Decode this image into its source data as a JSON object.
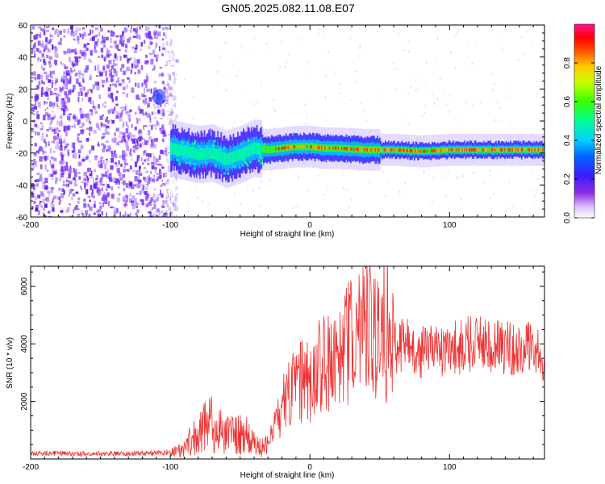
{
  "title": "GN05.2025.082.11.08.E07",
  "colors": {
    "spectrum_low": "#7b2ff7",
    "spectrum_high": "#ff0000",
    "snr_line": "#ee3333",
    "frame": "#000000"
  },
  "chart_data": [
    {
      "type": "heatmap",
      "xlabel": "Height of straight line (km)",
      "ylabel": "Frequency (Hz)",
      "xlim": [
        -200,
        168
      ],
      "ylim": [
        -60,
        60
      ],
      "xticks": [
        -200,
        -100,
        0,
        100
      ],
      "yticks": [
        -60,
        -40,
        -20,
        0,
        20,
        40,
        60
      ],
      "grid": false,
      "noise_region": {
        "x": [
          -200,
          -100
        ],
        "y": [
          -60,
          60
        ]
      },
      "band_center": [
        {
          "x": -100,
          "y": -17
        },
        {
          "x": -90,
          "y": -19
        },
        {
          "x": -80,
          "y": -21
        },
        {
          "x": -70,
          "y": -20
        },
        {
          "x": -60,
          "y": -24
        },
        {
          "x": -50,
          "y": -21
        },
        {
          "x": -40,
          "y": -17
        },
        {
          "x": -30,
          "y": -18
        },
        {
          "x": -20,
          "y": -17
        },
        {
          "x": -10,
          "y": -16
        },
        {
          "x": 0,
          "y": -16
        },
        {
          "x": 10,
          "y": -17
        },
        {
          "x": 20,
          "y": -17
        },
        {
          "x": 40,
          "y": -18
        },
        {
          "x": 60,
          "y": -18
        },
        {
          "x": 80,
          "y": -19
        },
        {
          "x": 100,
          "y": -18
        },
        {
          "x": 130,
          "y": -18
        },
        {
          "x": 168,
          "y": -18
        }
      ],
      "colorbar": {
        "label": "Normalized spectral amplitude",
        "range": [
          0,
          1
        ],
        "ticks": [
          "0.0",
          "0.2",
          "0.4",
          "0.6",
          "0.8"
        ]
      }
    },
    {
      "type": "line",
      "xlabel": "Height of straight line (km)",
      "ylabel": "SNR (10 * v/v)",
      "xlim": [
        -200,
        168
      ],
      "ylim": [
        0,
        6700
      ],
      "xticks": [
        -200,
        -100,
        0,
        100
      ],
      "yticks": [
        2000,
        4000,
        6000
      ],
      "grid": false,
      "series": [
        {
          "x": [
            -200,
            -180,
            -160,
            -140,
            -120,
            -100,
            -90,
            -85,
            -80,
            -75,
            -70,
            -60,
            -50,
            -45,
            -40,
            -35,
            -30,
            -25,
            -20,
            -15,
            -10,
            -5,
            0,
            5,
            10,
            20,
            30,
            40,
            50,
            60,
            70,
            80,
            100,
            120,
            140,
            160,
            168
          ],
          "values": [
            200,
            200,
            180,
            190,
            200,
            230,
            350,
            700,
            900,
            1100,
            1200,
            800,
            900,
            800,
            500,
            400,
            500,
            1100,
            1800,
            2300,
            2500,
            2700,
            2700,
            3100,
            3300,
            3400,
            4200,
            4400,
            4100,
            3900,
            3900,
            3700,
            3800,
            4100,
            3900,
            3800,
            3600
          ]
        }
      ]
    }
  ]
}
